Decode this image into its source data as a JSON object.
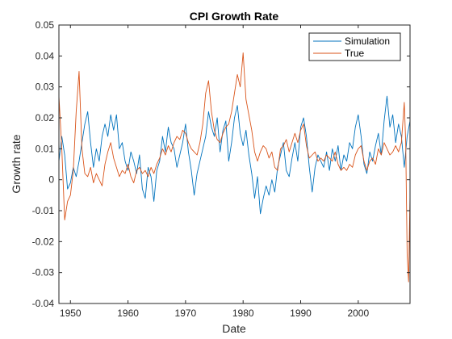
{
  "chart_data": {
    "type": "line",
    "title": "CPI Growth Rate",
    "xlabel": "Date",
    "ylabel": "Growth rate",
    "xlim": [
      1948,
      2009
    ],
    "ylim": [
      -0.04,
      0.05
    ],
    "xticks": [
      1950,
      1960,
      1970,
      1980,
      1990,
      2000
    ],
    "xtick_labels": [
      "1950",
      "1960",
      "1970",
      "1980",
      "1990",
      "2000"
    ],
    "yticks": [
      -0.04,
      -0.03,
      -0.02,
      -0.01,
      0,
      0.01,
      0.02,
      0.03,
      0.04,
      0.05
    ],
    "ytick_labels": [
      "-0.04",
      "-0.03",
      "-0.02",
      "-0.01",
      "0",
      "0.01",
      "0.02",
      "0.03",
      "0.04",
      "0.05"
    ],
    "grid": false,
    "legend_position": "top-right",
    "series": [
      {
        "name": "Simulation",
        "color": "#0072BD",
        "x": [
          1948.0,
          1948.5,
          1949.0,
          1949.5,
          1950.0,
          1950.5,
          1951.0,
          1951.5,
          1952.0,
          1952.5,
          1953.0,
          1953.5,
          1954.0,
          1954.5,
          1955.0,
          1955.5,
          1956.0,
          1956.5,
          1957.0,
          1957.5,
          1958.0,
          1958.5,
          1959.0,
          1959.5,
          1960.0,
          1960.5,
          1961.0,
          1961.5,
          1962.0,
          1962.5,
          1963.0,
          1963.5,
          1964.0,
          1964.5,
          1965.0,
          1965.5,
          1966.0,
          1966.5,
          1967.0,
          1967.5,
          1968.0,
          1968.5,
          1969.0,
          1969.5,
          1970.0,
          1970.5,
          1971.0,
          1971.5,
          1972.0,
          1972.5,
          1973.0,
          1973.5,
          1974.0,
          1974.5,
          1975.0,
          1975.5,
          1976.0,
          1976.5,
          1977.0,
          1977.5,
          1978.0,
          1978.5,
          1979.0,
          1979.5,
          1980.0,
          1980.5,
          1981.0,
          1981.5,
          1982.0,
          1982.5,
          1983.0,
          1983.5,
          1984.0,
          1984.5,
          1985.0,
          1985.5,
          1986.0,
          1986.5,
          1987.0,
          1987.5,
          1988.0,
          1988.5,
          1989.0,
          1989.5,
          1990.0,
          1990.5,
          1991.0,
          1991.5,
          1992.0,
          1992.5,
          1993.0,
          1993.5,
          1994.0,
          1994.5,
          1995.0,
          1995.5,
          1996.0,
          1996.5,
          1997.0,
          1997.5,
          1998.0,
          1998.5,
          1999.0,
          1999.5,
          2000.0,
          2000.5,
          2001.0,
          2001.5,
          2002.0,
          2002.5,
          2003.0,
          2003.5,
          2004.0,
          2004.5,
          2005.0,
          2005.5,
          2006.0,
          2006.5,
          2007.0,
          2007.5,
          2008.0,
          2008.5,
          2009.0
        ],
        "y": [
          0.006,
          0.014,
          0.008,
          -0.003,
          -0.001,
          0.004,
          0.001,
          0.006,
          0.012,
          0.018,
          0.022,
          0.012,
          0.004,
          0.01,
          0.006,
          0.014,
          0.018,
          0.014,
          0.021,
          0.016,
          0.021,
          0.01,
          0.012,
          0.006,
          0.003,
          0.009,
          0.006,
          0.002,
          0.008,
          -0.003,
          -0.006,
          0.004,
          0.001,
          -0.007,
          0.003,
          0.006,
          0.014,
          0.009,
          0.017,
          0.012,
          0.01,
          0.004,
          0.008,
          0.012,
          0.018,
          0.009,
          0.003,
          -0.005,
          0.002,
          0.006,
          0.01,
          0.014,
          0.022,
          0.017,
          0.014,
          0.02,
          0.009,
          0.016,
          0.019,
          0.006,
          0.012,
          0.02,
          0.024,
          0.015,
          0.011,
          0.016,
          0.008,
          0.002,
          -0.006,
          0.001,
          -0.011,
          -0.006,
          -0.002,
          -0.005,
          0.0,
          -0.004,
          0.004,
          0.008,
          0.012,
          0.003,
          0.001,
          0.007,
          0.012,
          0.006,
          0.017,
          0.02,
          0.014,
          0.004,
          -0.004,
          0.004,
          0.008,
          0.006,
          0.004,
          0.009,
          0.003,
          0.01,
          0.006,
          0.011,
          0.003,
          0.008,
          0.006,
          0.012,
          0.01,
          0.017,
          0.021,
          0.014,
          0.005,
          0.002,
          0.009,
          0.006,
          0.011,
          0.015,
          0.008,
          0.019,
          0.027,
          0.017,
          0.021,
          0.012,
          0.018,
          0.014,
          0.004,
          0.014,
          0.019
        ]
      },
      {
        "name": "True",
        "color": "#D95319",
        "x": [
          1948.0,
          1948.5,
          1949.0,
          1949.5,
          1950.0,
          1950.5,
          1951.0,
          1951.5,
          1952.0,
          1952.5,
          1953.0,
          1953.5,
          1954.0,
          1954.5,
          1955.0,
          1955.5,
          1956.0,
          1956.5,
          1957.0,
          1957.5,
          1958.0,
          1958.5,
          1959.0,
          1959.5,
          1960.0,
          1960.5,
          1961.0,
          1961.5,
          1962.0,
          1962.5,
          1963.0,
          1963.5,
          1964.0,
          1964.5,
          1965.0,
          1965.5,
          1966.0,
          1966.5,
          1967.0,
          1967.5,
          1968.0,
          1968.5,
          1969.0,
          1969.5,
          1970.0,
          1970.5,
          1971.0,
          1971.5,
          1972.0,
          1972.5,
          1973.0,
          1973.5,
          1974.0,
          1974.5,
          1975.0,
          1975.5,
          1976.0,
          1976.5,
          1977.0,
          1977.5,
          1978.0,
          1978.5,
          1979.0,
          1979.5,
          1980.0,
          1980.5,
          1981.0,
          1981.5,
          1982.0,
          1982.5,
          1983.0,
          1983.5,
          1984.0,
          1984.5,
          1985.0,
          1985.5,
          1986.0,
          1986.5,
          1987.0,
          1987.5,
          1988.0,
          1988.5,
          1989.0,
          1989.5,
          1990.0,
          1990.5,
          1991.0,
          1991.5,
          1992.0,
          1992.5,
          1993.0,
          1993.5,
          1994.0,
          1994.5,
          1995.0,
          1995.5,
          1996.0,
          1996.5,
          1997.0,
          1997.5,
          1998.0,
          1998.5,
          1999.0,
          1999.5,
          2000.0,
          2000.5,
          2001.0,
          2001.5,
          2002.0,
          2002.5,
          2003.0,
          2003.5,
          2004.0,
          2004.5,
          2005.0,
          2005.5,
          2006.0,
          2006.5,
          2007.0,
          2007.5,
          2008.0,
          2008.25,
          2008.5,
          2008.75,
          2009.0
        ],
        "y": [
          0.027,
          0.01,
          -0.013,
          -0.007,
          -0.005,
          0.003,
          0.022,
          0.035,
          0.01,
          0.002,
          0.001,
          0.004,
          -0.001,
          0.002,
          0.0,
          -0.002,
          0.005,
          0.009,
          0.012,
          0.007,
          0.004,
          0.001,
          0.003,
          0.002,
          0.005,
          0.001,
          -0.001,
          0.003,
          0.004,
          0.002,
          0.003,
          0.001,
          0.004,
          0.002,
          0.005,
          0.007,
          0.01,
          0.008,
          0.011,
          0.009,
          0.012,
          0.014,
          0.013,
          0.016,
          0.015,
          0.012,
          0.01,
          0.009,
          0.008,
          0.012,
          0.018,
          0.028,
          0.032,
          0.022,
          0.016,
          0.013,
          0.012,
          0.015,
          0.017,
          0.018,
          0.022,
          0.028,
          0.034,
          0.03,
          0.041,
          0.026,
          0.021,
          0.016,
          0.009,
          0.006,
          0.009,
          0.011,
          0.01,
          0.007,
          0.009,
          0.004,
          0.003,
          0.01,
          0.011,
          0.013,
          0.009,
          0.012,
          0.015,
          0.012,
          0.016,
          0.018,
          0.011,
          0.007,
          0.008,
          0.009,
          0.006,
          0.007,
          0.006,
          0.008,
          0.007,
          0.006,
          0.009,
          0.005,
          0.003,
          0.004,
          0.003,
          0.005,
          0.004,
          0.008,
          0.01,
          0.011,
          0.006,
          0.003,
          0.006,
          0.007,
          0.005,
          0.01,
          0.008,
          0.012,
          0.01,
          0.008,
          0.009,
          0.011,
          0.009,
          0.012,
          0.025,
          0.012,
          -0.024,
          -0.033,
          -0.005
        ]
      }
    ]
  }
}
